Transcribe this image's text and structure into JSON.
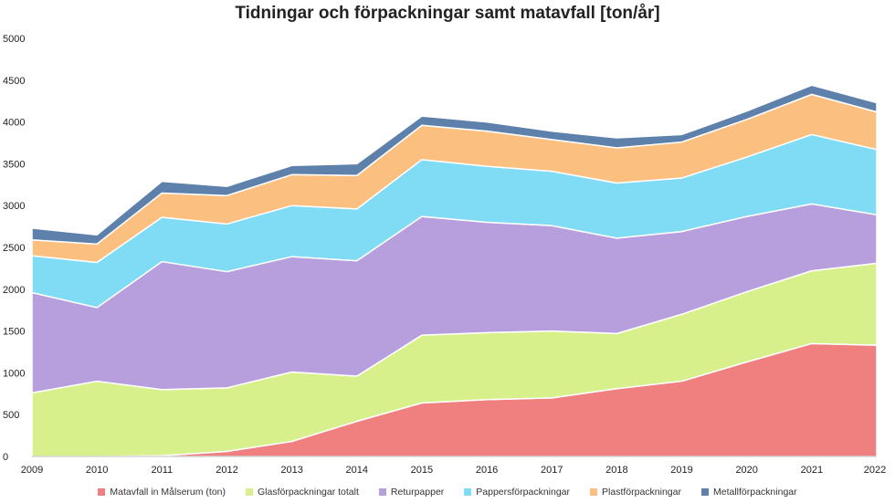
{
  "chart_data": {
    "type": "area",
    "stacked": true,
    "title": "Tidningar och förpackningar samt matavfall [ton/år]",
    "xlabel": "",
    "ylabel": "",
    "x": [
      "2009",
      "2010",
      "2011",
      "2012",
      "2013",
      "2014",
      "2015",
      "2016",
      "2017",
      "2018",
      "2019",
      "2020",
      "2021",
      "2022"
    ],
    "ylim": [
      0,
      5000
    ],
    "yticks": [
      0,
      500,
      1000,
      1500,
      2000,
      2500,
      3000,
      3500,
      4000,
      4500,
      5000
    ],
    "grid": false,
    "legend_position": "bottom",
    "series": [
      {
        "name": "Matavfall in Målserum (ton)",
        "color": "#f08080",
        "values": [
          0,
          0,
          10,
          60,
          180,
          420,
          640,
          680,
          700,
          810,
          900,
          1130,
          1350,
          1330
        ]
      },
      {
        "name": "Glasförpackningar totalt",
        "color": "#d8f08c",
        "values": [
          760,
          900,
          790,
          760,
          830,
          540,
          810,
          800,
          800,
          660,
          800,
          840,
          870,
          980
        ]
      },
      {
        "name": "Returpapper",
        "color": "#b79edc",
        "values": [
          1200,
          880,
          1530,
          1390,
          1380,
          1380,
          1420,
          1320,
          1260,
          1140,
          990,
          900,
          800,
          580
        ]
      },
      {
        "name": "Pappersförpackningar",
        "color": "#80dcf4",
        "values": [
          440,
          540,
          530,
          570,
          610,
          620,
          680,
          670,
          650,
          660,
          640,
          710,
          830,
          780
        ]
      },
      {
        "name": "Plastförpackningar",
        "color": "#fbbf80",
        "values": [
          190,
          220,
          290,
          340,
          370,
          400,
          410,
          420,
          380,
          420,
          430,
          450,
          480,
          450
        ]
      },
      {
        "name": "Metallförpackningar",
        "color": "#5e81ab",
        "values": [
          140,
          110,
          140,
          110,
          110,
          140,
          110,
          110,
          100,
          120,
          90,
          100,
          110,
          110
        ]
      }
    ]
  }
}
